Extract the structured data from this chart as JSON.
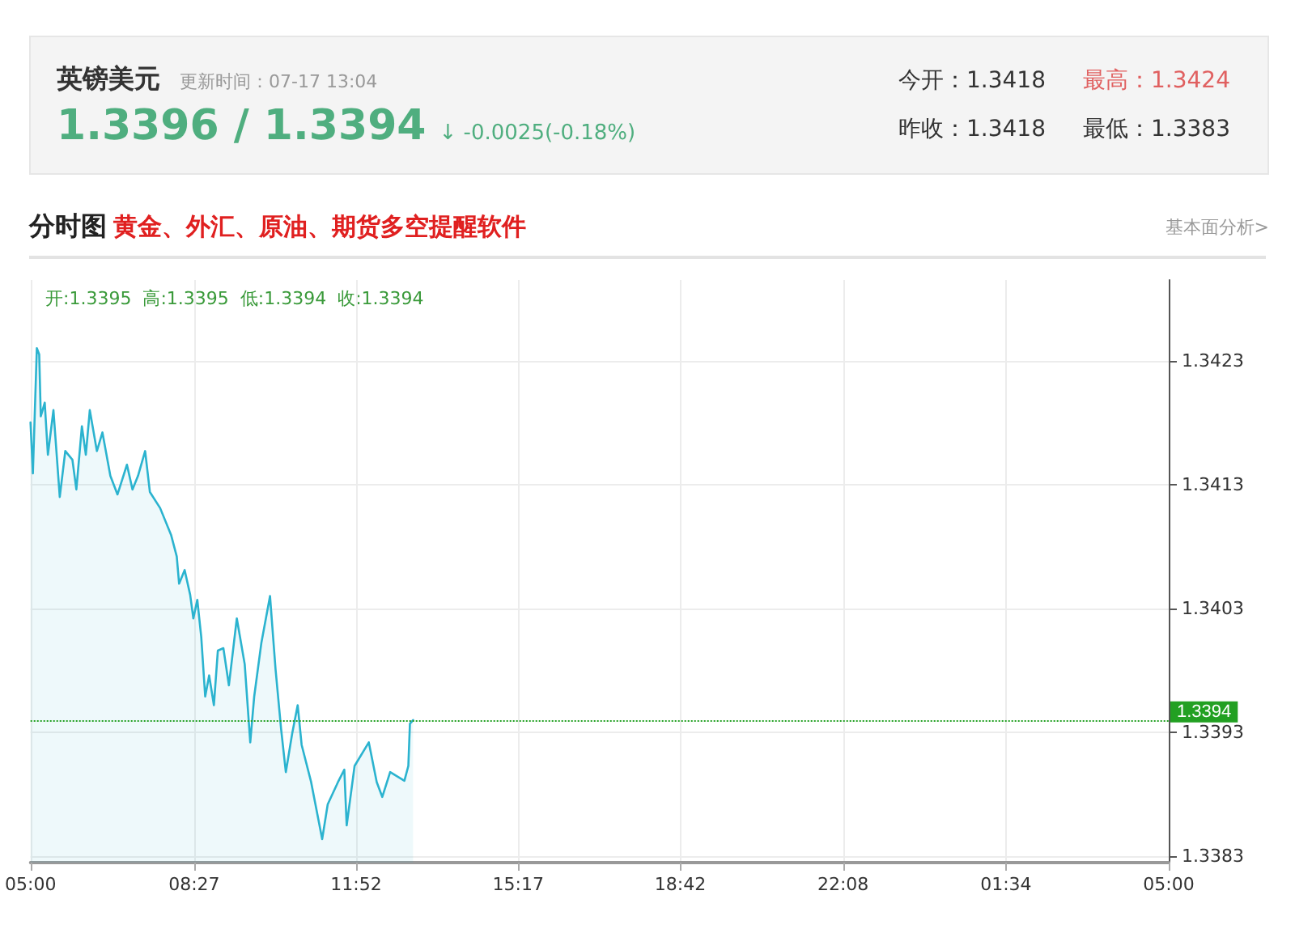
{
  "chart_data": {
    "type": "area",
    "title": "英镑美元",
    "subtitle": "更新时间：07-17 13:04",
    "annotations": [
      "1.3396 / 1.3394",
      "↓ -0.0025(-0.18%)",
      "今开：1.3418",
      "最高：1.3424",
      "昨收：1.3418",
      "最低：1.3383",
      "分时图",
      "黄金、外汇、原油、期货多空提醒软件",
      "基本面分析>",
      "开:1.3395  高:1.3395  低:1.3394  收:1.3394"
    ],
    "x": [
      "--07-17T05:00",
      "--07-17T05:03",
      "--07-17T05:08",
      "--07-17T05:11",
      "--07-17T05:13",
      "--07-17T05:18",
      "--07-17T05:22",
      "--07-17T05:29",
      "--07-17T05:37",
      "--07-17T05:44",
      "--07-17T05:53",
      "--07-17T05:58",
      "--07-17T06:05",
      "--07-17T06:10",
      "--07-17T06:15",
      "--07-17T06:24",
      "--07-17T06:31",
      "--07-17T06:41",
      "--07-17T06:50",
      "--07-17T07:02",
      "--07-17T07:09",
      "--07-17T07:16",
      "--07-17T07:25",
      "--07-17T07:31",
      "--07-17T07:44",
      "--07-17T07:58",
      "--07-17T08:05",
      "--07-17T08:08",
      "--07-17T08:15",
      "--07-17T08:22",
      "--07-17T08:26",
      "--07-17T08:31",
      "--07-17T08:36",
      "--07-17T08:41",
      "--07-17T08:46",
      "--07-17T08:52",
      "--07-17T08:57",
      "--07-17T09:04",
      "--07-17T09:11",
      "--07-17T09:21",
      "--07-17T09:31",
      "--07-17T09:38",
      "--07-17T09:43",
      "--07-17T09:52",
      "--07-17T10:03",
      "--07-17T10:10",
      "--07-17T10:17",
      "--07-17T10:23",
      "--07-17T10:31",
      "--07-17T10:38",
      "--07-17T10:43",
      "--07-17T10:55",
      "--07-17T11:09",
      "--07-17T11:16",
      "--07-17T11:29",
      "--07-17T11:37",
      "--07-17T11:40",
      "--07-17T11:50",
      "--07-17T12:08",
      "--07-17T12:18",
      "--07-17T12:25",
      "--07-17T12:35",
      "--07-17T12:53",
      "--07-17T12:58",
      "--07-17T13:00",
      "--07-17T13:04"
    ],
    "series": [
      {
        "color": "#2bb3cf",
        "values": [
          1.3418,
          1.34139,
          1.3424,
          1.34235,
          1.34185,
          1.34196,
          1.34154,
          1.3419,
          1.3412,
          1.34157,
          1.3415,
          1.34126,
          1.34177,
          1.34154,
          1.3419,
          1.34157,
          1.34172,
          1.34137,
          1.34122,
          1.34146,
          1.34126,
          1.34137,
          1.34157,
          1.34124,
          1.34111,
          1.34089,
          1.34072,
          1.3405,
          1.34061,
          1.34041,
          1.34022,
          1.34037,
          1.34007,
          1.33959,
          1.33976,
          1.33952,
          1.33996,
          1.33998,
          1.33968,
          1.34022,
          1.33985,
          1.33922,
          1.33959,
          1.34002,
          1.3404,
          1.33981,
          1.33933,
          1.33898,
          1.33929,
          1.33952,
          1.3392,
          1.3389,
          1.33844,
          1.33872,
          1.3389,
          1.339,
          1.33855,
          1.33903,
          1.33922,
          1.3389,
          1.33878,
          1.33898,
          1.33891,
          1.33903,
          1.33937,
          1.3394
        ]
      }
    ],
    "xlim": [
      "--07-17T05:00",
      "--07-18T05:00"
    ],
    "xticks": [
      {
        "value": "--07-17T05:00",
        "label": "05:00"
      },
      {
        "value": "--07-17T08:27",
        "label": "08:27"
      },
      {
        "value": "--07-17T11:52",
        "label": "11:52"
      },
      {
        "value": "--07-17T15:17",
        "label": "15:17"
      },
      {
        "value": "--07-17T18:42",
        "label": "18:42"
      },
      {
        "value": "--07-17T22:08",
        "label": "22:08"
      },
      {
        "value": "--07-18T01:34",
        "label": "01:34"
      },
      {
        "value": "--07-18T05:00",
        "label": "05:00"
      }
    ],
    "ylim": [
      1.33825,
      1.34295
    ],
    "yticks": [
      1.3383,
      1.3393,
      1.3403,
      1.3413,
      1.3423
    ],
    "ref_lines": [
      {
        "axis": "y",
        "value": 1.3394,
        "label": "1.3394",
        "color": "#22a022",
        "line_style": "dotted"
      }
    ],
    "grid": true,
    "marker": "none",
    "line_style": "solid"
  }
}
